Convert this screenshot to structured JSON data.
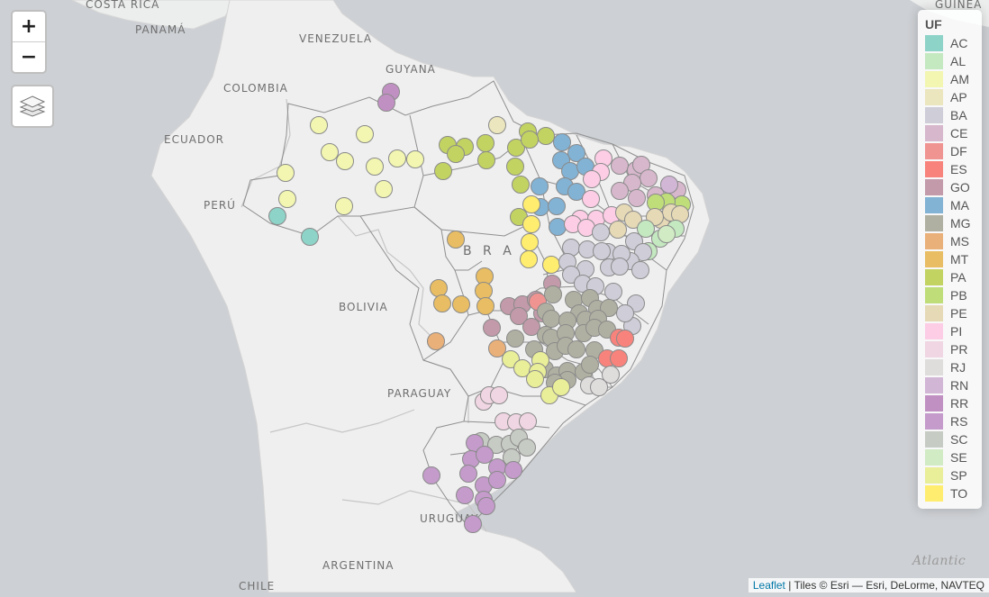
{
  "map": {
    "zoom_in_label": "+",
    "zoom_out_label": "−",
    "labels": {
      "costa_rica": "COSTA RICA",
      "panama": "PANAMÁ",
      "venezuela": "VENEZUELA",
      "guyana": "GUYANA",
      "guinea": "GUINEA",
      "colombia": "COLOMBIA",
      "ecuador": "ECUADOR",
      "peru": "PERÚ",
      "brazil": "B R A Z",
      "bolivia": "BOLIVIA",
      "paraguay": "PARAGUAY",
      "uruguay": "URUGUAY",
      "argentina": "ARGENTINA",
      "chile": "CHILE",
      "atlantic": "Atlantic"
    }
  },
  "legend": {
    "title": "UF",
    "items": [
      {
        "code": "AC",
        "color": "#8dd3c7"
      },
      {
        "code": "AL",
        "color": "#c4e8c0"
      },
      {
        "code": "AM",
        "color": "#f2f6b0"
      },
      {
        "code": "AP",
        "color": "#ebe6bd"
      },
      {
        "code": "BA",
        "color": "#cfcdd8"
      },
      {
        "code": "CE",
        "color": "#d7b7cc"
      },
      {
        "code": "DF",
        "color": "#f09492"
      },
      {
        "code": "ES",
        "color": "#f8837c"
      },
      {
        "code": "GO",
        "color": "#c29aa9"
      },
      {
        "code": "MA",
        "color": "#82b2d4"
      },
      {
        "code": "MG",
        "color": "#b0b0a2"
      },
      {
        "code": "MS",
        "color": "#eab079"
      },
      {
        "code": "MT",
        "color": "#e8bd63"
      },
      {
        "code": "PA",
        "color": "#c3d362"
      },
      {
        "code": "PB",
        "color": "#bfde79"
      },
      {
        "code": "PE",
        "color": "#e6d9b6"
      },
      {
        "code": "PI",
        "color": "#fccde5"
      },
      {
        "code": "PR",
        "color": "#f0d6e2"
      },
      {
        "code": "RJ",
        "color": "#dfdcdc"
      },
      {
        "code": "RN",
        "color": "#d2b6d6"
      },
      {
        "code": "RR",
        "color": "#c190c3"
      },
      {
        "code": "RS",
        "color": "#c49bcb"
      },
      {
        "code": "SC",
        "color": "#c6cbc3"
      },
      {
        "code": "SE",
        "color": "#d1ebc5"
      },
      {
        "code": "SP",
        "color": "#e9ee98"
      },
      {
        "code": "TO",
        "color": "#ffed6f"
      }
    ]
  },
  "attribution": {
    "leaflet": "Leaflet",
    "separator": " | ",
    "tiles": "Tiles © Esri — Esri, DeLorme, NAVTEQ"
  }
}
